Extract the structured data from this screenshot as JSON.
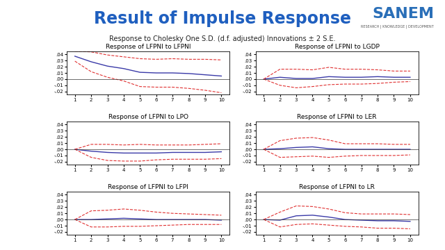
{
  "header": {
    "title": "Result of Impulse Response",
    "logo": "SANEM",
    "logo_tagline": "RESEARCH | KNOWLEDGE | DEVELOPMENT",
    "subtitle": "Response to Cholesky One S.D. (d.f. adjusted) Innovations ± 2 S.E."
  },
  "chart_data": [
    {
      "type": "line",
      "title": "Response of LFPNI to LFPNI",
      "x": [
        1,
        2,
        3,
        4,
        5,
        6,
        7,
        8,
        9,
        10
      ],
      "xlim": [
        0.5,
        10.5
      ],
      "xticks": [
        1,
        2,
        3,
        4,
        5,
        6,
        7,
        8,
        9,
        10
      ],
      "ylim": [
        -0.025,
        0.045
      ],
      "yticks": [
        {
          "value": -0.02,
          "label": "-.02"
        },
        {
          "value": -0.01,
          "label": "-.01"
        },
        {
          "value": 0.0,
          "label": ".00"
        },
        {
          "value": 0.01,
          "label": ".01"
        },
        {
          "value": 0.02,
          "label": ".02"
        },
        {
          "value": 0.03,
          "label": ".03"
        },
        {
          "value": 0.04,
          "label": ".04"
        }
      ],
      "series": [
        {
          "color": "#3a3aa8",
          "line_style": "solid",
          "values": [
            0.037,
            0.028,
            0.021,
            0.017,
            0.011,
            0.01,
            0.01,
            0.009,
            0.007,
            0.005
          ]
        },
        {
          "color": "#e03030",
          "line_style": "dashed",
          "values": [
            0.045,
            0.044,
            0.039,
            0.036,
            0.033,
            0.032,
            0.033,
            0.032,
            0.032,
            0.031
          ]
        },
        {
          "color": "#e03030",
          "line_style": "dashed",
          "values": [
            0.029,
            0.012,
            0.003,
            -0.003,
            -0.012,
            -0.013,
            -0.013,
            -0.015,
            -0.018,
            -0.022
          ]
        }
      ]
    },
    {
      "type": "line",
      "title": "Response of LFPNI to LGDP",
      "x": [
        1,
        2,
        3,
        4,
        5,
        6,
        7,
        8,
        9,
        10
      ],
      "xlim": [
        0.5,
        10.5
      ],
      "xticks": [
        1,
        2,
        3,
        4,
        5,
        6,
        7,
        8,
        9,
        10
      ],
      "ylim": [
        -0.025,
        0.045
      ],
      "yticks": [
        {
          "value": -0.02,
          "label": "-.02"
        },
        {
          "value": -0.01,
          "label": "-.01"
        },
        {
          "value": 0.0,
          "label": ".00"
        },
        {
          "value": 0.01,
          "label": ".01"
        },
        {
          "value": 0.02,
          "label": ".02"
        },
        {
          "value": 0.03,
          "label": ".03"
        },
        {
          "value": 0.04,
          "label": ".04"
        }
      ],
      "series": [
        {
          "color": "#3a3aa8",
          "line_style": "solid",
          "values": [
            0.0,
            0.003,
            0.001,
            0.001,
            0.004,
            0.003,
            0.003,
            0.004,
            0.003,
            0.003
          ]
        },
        {
          "color": "#e03030",
          "line_style": "dashed",
          "values": [
            0.0,
            0.016,
            0.016,
            0.015,
            0.019,
            0.016,
            0.016,
            0.015,
            0.013,
            0.013
          ]
        },
        {
          "color": "#e03030",
          "line_style": "dashed",
          "values": [
            0.0,
            -0.01,
            -0.014,
            -0.012,
            -0.009,
            -0.008,
            -0.008,
            -0.007,
            -0.005,
            -0.004
          ]
        }
      ]
    },
    {
      "type": "line",
      "title": "Response of LFPNI to LPO",
      "x": [
        1,
        2,
        3,
        4,
        5,
        6,
        7,
        8,
        9,
        10
      ],
      "xlim": [
        0.5,
        10.5
      ],
      "xticks": [
        1,
        2,
        3,
        4,
        5,
        6,
        7,
        8,
        9,
        10
      ],
      "ylim": [
        -0.025,
        0.045
      ],
      "yticks": [
        {
          "value": -0.02,
          "label": "-.02"
        },
        {
          "value": -0.01,
          "label": "-.01"
        },
        {
          "value": 0.0,
          "label": ".00"
        },
        {
          "value": 0.01,
          "label": ".01"
        },
        {
          "value": 0.02,
          "label": ".02"
        },
        {
          "value": 0.03,
          "label": ".03"
        },
        {
          "value": 0.04,
          "label": ".04"
        }
      ],
      "series": [
        {
          "color": "#3a3aa8",
          "line_style": "solid",
          "values": [
            0.0,
            -0.003,
            -0.005,
            -0.006,
            -0.006,
            -0.006,
            -0.005,
            -0.005,
            -0.005,
            -0.004
          ]
        },
        {
          "color": "#e03030",
          "line_style": "dashed",
          "values": [
            0.0,
            0.008,
            0.008,
            0.007,
            0.008,
            0.007,
            0.007,
            0.007,
            0.008,
            0.009
          ]
        },
        {
          "color": "#e03030",
          "line_style": "dashed",
          "values": [
            0.0,
            -0.013,
            -0.018,
            -0.019,
            -0.019,
            -0.017,
            -0.016,
            -0.016,
            -0.016,
            -0.015
          ]
        }
      ]
    },
    {
      "type": "line",
      "title": "Response of LFPNI to LER",
      "x": [
        1,
        2,
        3,
        4,
        5,
        6,
        7,
        8,
        9,
        10
      ],
      "xlim": [
        0.5,
        10.5
      ],
      "xticks": [
        1,
        2,
        3,
        4,
        5,
        6,
        7,
        8,
        9,
        10
      ],
      "ylim": [
        -0.025,
        0.045
      ],
      "yticks": [
        {
          "value": -0.02,
          "label": "-.02"
        },
        {
          "value": -0.01,
          "label": "-.01"
        },
        {
          "value": 0.0,
          "label": ".00"
        },
        {
          "value": 0.01,
          "label": ".01"
        },
        {
          "value": 0.02,
          "label": ".02"
        },
        {
          "value": 0.03,
          "label": ".03"
        },
        {
          "value": 0.04,
          "label": ".04"
        }
      ],
      "series": [
        {
          "color": "#3a3aa8",
          "line_style": "solid",
          "values": [
            0.0,
            0.001,
            0.003,
            0.004,
            0.001,
            0.0,
            0.0,
            0.0,
            0.0,
            0.0
          ]
        },
        {
          "color": "#e03030",
          "line_style": "dashed",
          "values": [
            0.0,
            0.014,
            0.018,
            0.019,
            0.015,
            0.009,
            0.009,
            0.009,
            0.008,
            0.008
          ]
        },
        {
          "color": "#e03030",
          "line_style": "dashed",
          "values": [
            0.0,
            -0.013,
            -0.012,
            -0.011,
            -0.013,
            -0.011,
            -0.01,
            -0.01,
            -0.01,
            -0.009
          ]
        }
      ]
    },
    {
      "type": "line",
      "title": "Response of LFPNI to LFPI",
      "x": [
        1,
        2,
        3,
        4,
        5,
        6,
        7,
        8,
        9,
        10
      ],
      "xlim": [
        0.5,
        10.5
      ],
      "xticks": [
        1,
        2,
        3,
        4,
        5,
        6,
        7,
        8,
        9,
        10
      ],
      "ylim": [
        -0.025,
        0.045
      ],
      "yticks": [
        {
          "value": -0.02,
          "label": "-.02"
        },
        {
          "value": -0.01,
          "label": "-.01"
        },
        {
          "value": 0.0,
          "label": ".00"
        },
        {
          "value": 0.01,
          "label": ".01"
        },
        {
          "value": 0.02,
          "label": ".02"
        },
        {
          "value": 0.03,
          "label": ".03"
        },
        {
          "value": 0.04,
          "label": ".04"
        }
      ],
      "series": [
        {
          "color": "#3a3aa8",
          "line_style": "solid",
          "values": [
            0.0,
            0.0,
            0.001,
            0.002,
            0.001,
            0.0,
            0.0,
            0.0,
            0.0,
            -0.001
          ]
        },
        {
          "color": "#e03030",
          "line_style": "dashed",
          "values": [
            0.0,
            0.014,
            0.015,
            0.017,
            0.015,
            0.012,
            0.01,
            0.009,
            0.008,
            0.007
          ]
        },
        {
          "color": "#e03030",
          "line_style": "dashed",
          "values": [
            0.0,
            -0.012,
            -0.012,
            -0.011,
            -0.011,
            -0.01,
            -0.009,
            -0.008,
            -0.008,
            -0.008
          ]
        }
      ]
    },
    {
      "type": "line",
      "title": "Response of LFPNI to LR",
      "x": [
        1,
        2,
        3,
        4,
        5,
        6,
        7,
        8,
        9,
        10
      ],
      "xlim": [
        0.5,
        10.5
      ],
      "xticks": [
        1,
        2,
        3,
        4,
        5,
        6,
        7,
        8,
        9,
        10
      ],
      "ylim": [
        -0.025,
        0.045
      ],
      "yticks": [
        {
          "value": -0.02,
          "label": "-.02"
        },
        {
          "value": -0.01,
          "label": "-.01"
        },
        {
          "value": 0.0,
          "label": ".00"
        },
        {
          "value": 0.01,
          "label": ".01"
        },
        {
          "value": 0.02,
          "label": ".02"
        },
        {
          "value": 0.03,
          "label": ".03"
        },
        {
          "value": 0.04,
          "label": ".04"
        }
      ],
      "series": [
        {
          "color": "#3a3aa8",
          "line_style": "solid",
          "values": [
            0.0,
            -0.001,
            0.006,
            0.007,
            0.004,
            0.0,
            -0.001,
            -0.002,
            -0.002,
            -0.003
          ]
        },
        {
          "color": "#e03030",
          "line_style": "dashed",
          "values": [
            0.0,
            0.012,
            0.022,
            0.021,
            0.017,
            0.011,
            0.009,
            0.009,
            0.009,
            0.008
          ]
        },
        {
          "color": "#e03030",
          "line_style": "dashed",
          "values": [
            0.0,
            -0.012,
            -0.008,
            -0.007,
            -0.009,
            -0.011,
            -0.012,
            -0.014,
            -0.014,
            -0.015
          ]
        }
      ]
    }
  ]
}
